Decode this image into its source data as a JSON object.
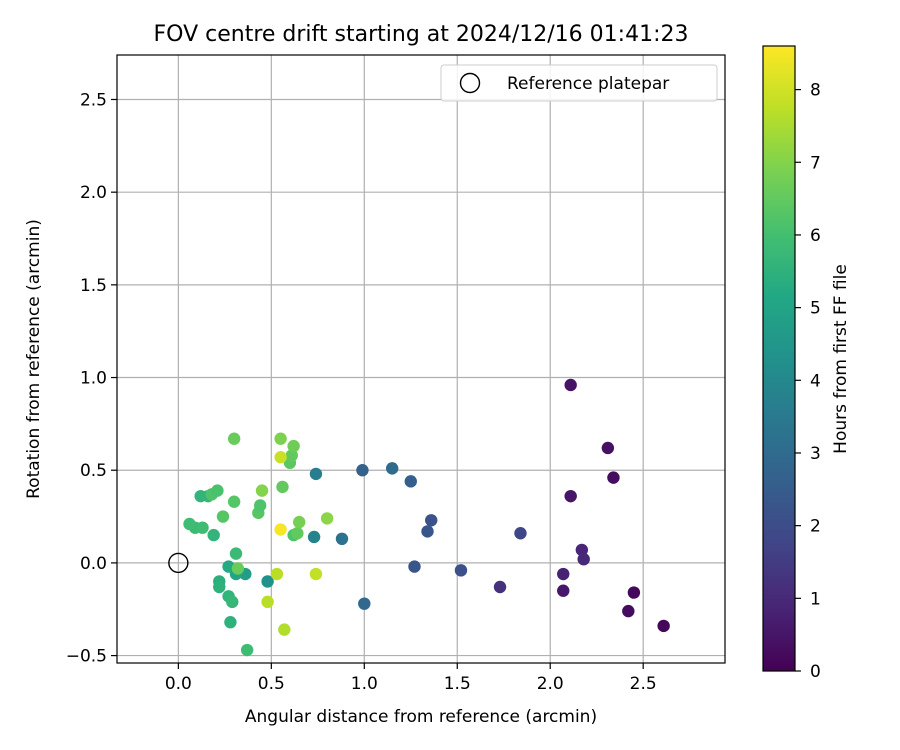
{
  "chart_data": {
    "type": "scatter",
    "title": "FOV centre drift starting at 2024/12/16 01:41:23",
    "xlabel": "Angular distance from reference (arcmin)",
    "ylabel": "Rotation from reference (arcmin)",
    "xlim": [
      -0.33,
      2.94
    ],
    "ylim": [
      -0.54,
      2.74
    ],
    "xticks": [
      0.0,
      0.5,
      1.0,
      1.5,
      2.0,
      2.5
    ],
    "xtick_labels": [
      "0.0",
      "0.5",
      "1.0",
      "1.5",
      "2.0",
      "2.5"
    ],
    "yticks": [
      -0.5,
      0.0,
      0.5,
      1.0,
      1.5,
      2.0,
      2.5
    ],
    "ytick_labels": [
      "−0.5",
      "0.0",
      "0.5",
      "1.0",
      "1.5",
      "2.0",
      "2.5"
    ],
    "grid": true,
    "legend": {
      "placement": "top-right",
      "entries": [
        "Reference platepar"
      ]
    },
    "reference_point": {
      "x": 0.0,
      "y": 0.0,
      "label": "Reference platepar"
    },
    "colorbar": {
      "label": "Hours from first FF file",
      "range": [
        0,
        8.6
      ],
      "colormap": "viridis",
      "ticks": [
        0,
        1,
        2,
        3,
        4,
        5,
        6,
        7,
        8
      ],
      "tick_labels": [
        "0",
        "1",
        "2",
        "3",
        "4",
        "5",
        "6",
        "7",
        "8"
      ]
    },
    "points": [
      {
        "x": 2.61,
        "y": -0.34,
        "hours": 0.15
      },
      {
        "x": 2.45,
        "y": -0.16,
        "hours": 0.2
      },
      {
        "x": 2.42,
        "y": -0.26,
        "hours": 0.25
      },
      {
        "x": 2.34,
        "y": 0.46,
        "hours": 0.3
      },
      {
        "x": 2.31,
        "y": 0.62,
        "hours": 0.4
      },
      {
        "x": 2.11,
        "y": 0.96,
        "hours": 0.45
      },
      {
        "x": 2.11,
        "y": 0.36,
        "hours": 0.5
      },
      {
        "x": 2.07,
        "y": -0.15,
        "hours": 0.55
      },
      {
        "x": 2.07,
        "y": -0.06,
        "hours": 0.8
      },
      {
        "x": 2.17,
        "y": 0.07,
        "hours": 0.9
      },
      {
        "x": 2.18,
        "y": 0.02,
        "hours": 1.0
      },
      {
        "x": 1.73,
        "y": -0.13,
        "hours": 1.2
      },
      {
        "x": 1.84,
        "y": 0.16,
        "hours": 1.8
      },
      {
        "x": 1.52,
        "y": -0.04,
        "hours": 2.1
      },
      {
        "x": 1.36,
        "y": 0.23,
        "hours": 2.2
      },
      {
        "x": 1.34,
        "y": 0.17,
        "hours": 2.3
      },
      {
        "x": 1.27,
        "y": -0.02,
        "hours": 2.3
      },
      {
        "x": 1.25,
        "y": 0.44,
        "hours": 2.6
      },
      {
        "x": 1.15,
        "y": 0.51,
        "hours": 3.0
      },
      {
        "x": 0.99,
        "y": 0.5,
        "hours": 2.7
      },
      {
        "x": 1.0,
        "y": -0.22,
        "hours": 2.9
      },
      {
        "x": 0.88,
        "y": 0.13,
        "hours": 3.2
      },
      {
        "x": 0.73,
        "y": 0.14,
        "hours": 3.8
      },
      {
        "x": 0.74,
        "y": 0.48,
        "hours": 3.6
      },
      {
        "x": 0.48,
        "y": -0.1,
        "hours": 4.3
      },
      {
        "x": 0.36,
        "y": -0.06,
        "hours": 4.8
      },
      {
        "x": 0.31,
        "y": -0.06,
        "hours": 5.0
      },
      {
        "x": 0.27,
        "y": -0.02,
        "hours": 5.2
      },
      {
        "x": 0.22,
        "y": -0.1,
        "hours": 5.4
      },
      {
        "x": 0.22,
        "y": -0.13,
        "hours": 5.5
      },
      {
        "x": 0.27,
        "y": -0.18,
        "hours": 5.6
      },
      {
        "x": 0.29,
        "y": -0.21,
        "hours": 5.7
      },
      {
        "x": 0.28,
        "y": -0.32,
        "hours": 5.5
      },
      {
        "x": 0.37,
        "y": -0.47,
        "hours": 5.9
      },
      {
        "x": 0.31,
        "y": 0.05,
        "hours": 5.8
      },
      {
        "x": 0.32,
        "y": -0.03,
        "hours": 6.6
      },
      {
        "x": 0.19,
        "y": 0.15,
        "hours": 5.6
      },
      {
        "x": 0.16,
        "y": 0.36,
        "hours": 5.7
      },
      {
        "x": 0.12,
        "y": 0.36,
        "hours": 5.6
      },
      {
        "x": 0.09,
        "y": 0.19,
        "hours": 5.8
      },
      {
        "x": 0.06,
        "y": 0.21,
        "hours": 5.9
      },
      {
        "x": 0.13,
        "y": 0.19,
        "hours": 5.9
      },
      {
        "x": 0.18,
        "y": 0.37,
        "hours": 6.2
      },
      {
        "x": 0.21,
        "y": 0.39,
        "hours": 6.1
      },
      {
        "x": 0.24,
        "y": 0.25,
        "hours": 6.3
      },
      {
        "x": 0.3,
        "y": 0.33,
        "hours": 6.3
      },
      {
        "x": 0.3,
        "y": 0.67,
        "hours": 6.6
      },
      {
        "x": 0.43,
        "y": 0.27,
        "hours": 6.3
      },
      {
        "x": 0.44,
        "y": 0.31,
        "hours": 6.2
      },
      {
        "x": 0.45,
        "y": 0.39,
        "hours": 7.0
      },
      {
        "x": 0.56,
        "y": 0.41,
        "hours": 6.5
      },
      {
        "x": 0.6,
        "y": 0.54,
        "hours": 6.4
      },
      {
        "x": 0.61,
        "y": 0.58,
        "hours": 6.5
      },
      {
        "x": 0.62,
        "y": 0.63,
        "hours": 6.7
      },
      {
        "x": 0.55,
        "y": 0.67,
        "hours": 6.9
      },
      {
        "x": 0.55,
        "y": 0.57,
        "hours": 7.9
      },
      {
        "x": 0.62,
        "y": 0.15,
        "hours": 6.2
      },
      {
        "x": 0.64,
        "y": 0.16,
        "hours": 6.5
      },
      {
        "x": 0.65,
        "y": 0.22,
        "hours": 6.8
      },
      {
        "x": 0.8,
        "y": 0.24,
        "hours": 7.1
      },
      {
        "x": 0.55,
        "y": 0.18,
        "hours": 8.5
      },
      {
        "x": 0.53,
        "y": -0.06,
        "hours": 7.7
      },
      {
        "x": 0.57,
        "y": -0.36,
        "hours": 7.6
      },
      {
        "x": 0.48,
        "y": -0.21,
        "hours": 7.7
      },
      {
        "x": 0.74,
        "y": -0.06,
        "hours": 7.8
      }
    ]
  }
}
